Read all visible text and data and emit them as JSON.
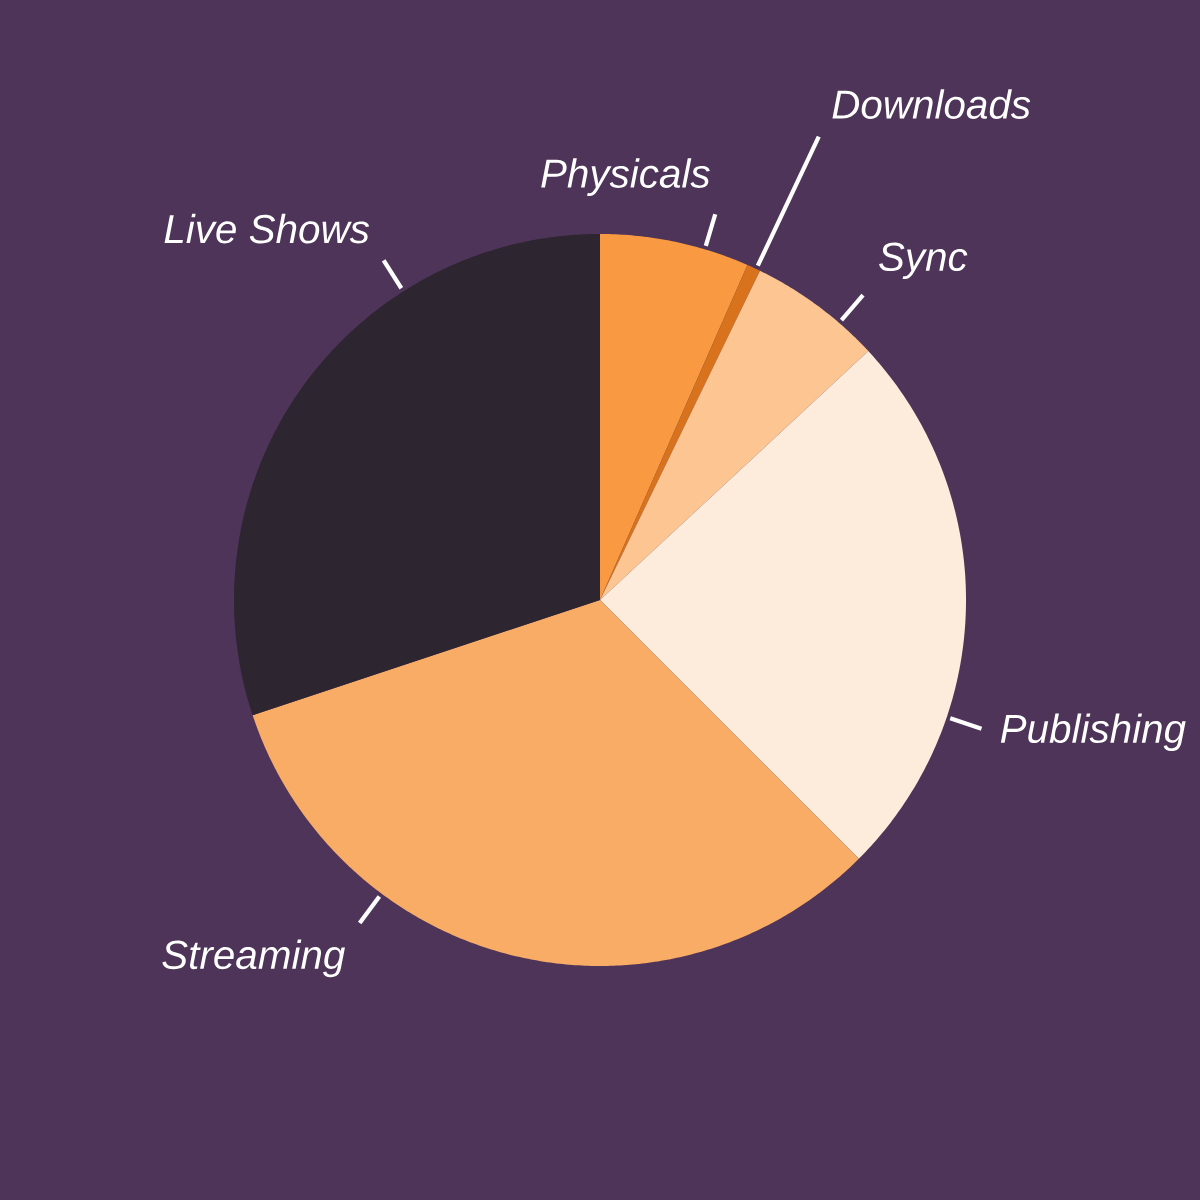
{
  "chart_data": {
    "type": "pie",
    "categories": [
      "Physicals",
      "Downloads",
      "Sync",
      "Publishing",
      "Streaming",
      "Live Shows"
    ],
    "values": [
      6.6,
      0.6,
      5.9,
      24.4,
      32.4,
      30.1
    ],
    "colors": [
      "#f99a42",
      "#d9721c",
      "#fdc592",
      "#fdebdb",
      "#f9ac66",
      "#2d252f"
    ]
  }
}
